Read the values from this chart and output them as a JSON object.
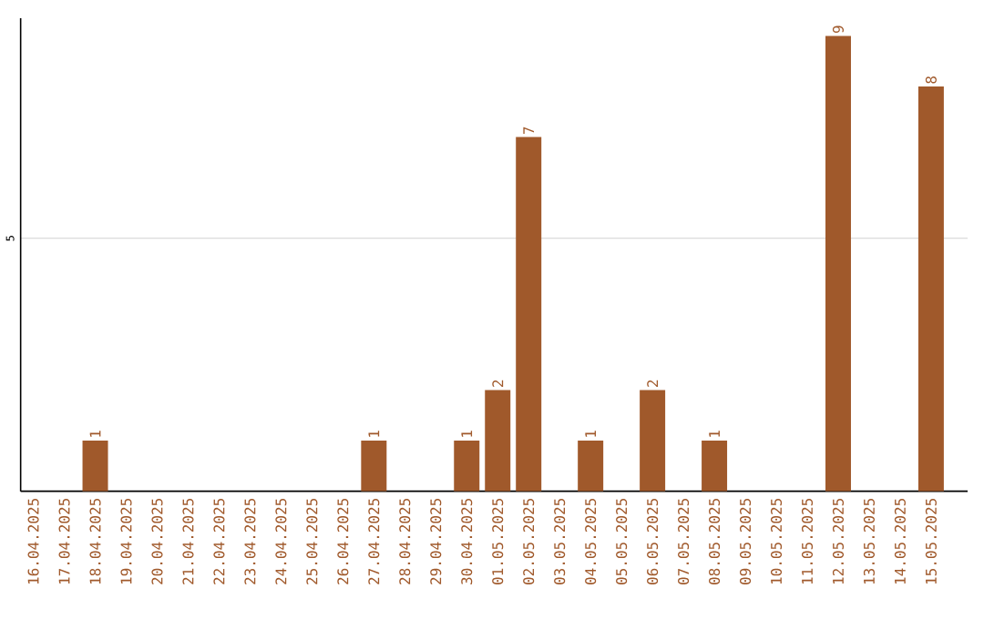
{
  "chart_data": {
    "type": "bar",
    "categories": [
      "16.04.2025",
      "17.04.2025",
      "18.04.2025",
      "19.04.2025",
      "20.04.2025",
      "21.04.2025",
      "22.04.2025",
      "23.04.2025",
      "24.04.2025",
      "25.04.2025",
      "26.04.2025",
      "27.04.2025",
      "28.04.2025",
      "29.04.2025",
      "30.04.2025",
      "01.05.2025",
      "02.05.2025",
      "03.05.2025",
      "04.05.2025",
      "05.05.2025",
      "06.05.2025",
      "07.05.2025",
      "08.05.2025",
      "09.05.2025",
      "10.05.2025",
      "11.05.2025",
      "12.05.2025",
      "13.05.2025",
      "14.05.2025",
      "15.05.2025"
    ],
    "values": [
      0,
      0,
      1,
      0,
      0,
      0,
      0,
      0,
      0,
      0,
      0,
      1,
      0,
      0,
      1,
      2,
      7,
      0,
      1,
      0,
      2,
      0,
      1,
      0,
      0,
      0,
      9,
      0,
      0,
      8
    ],
    "value_labels": [
      null,
      null,
      "1",
      null,
      null,
      null,
      null,
      null,
      null,
      null,
      null,
      "1",
      null,
      null,
      "1",
      "2",
      "7",
      null,
      "1",
      null,
      "2",
      null,
      "1",
      null,
      null,
      null,
      "9",
      null,
      null,
      "8"
    ],
    "color": "#a0592b",
    "ylim": [
      0,
      9.35
    ],
    "yticks": [
      5
    ],
    "grid": "y"
  }
}
